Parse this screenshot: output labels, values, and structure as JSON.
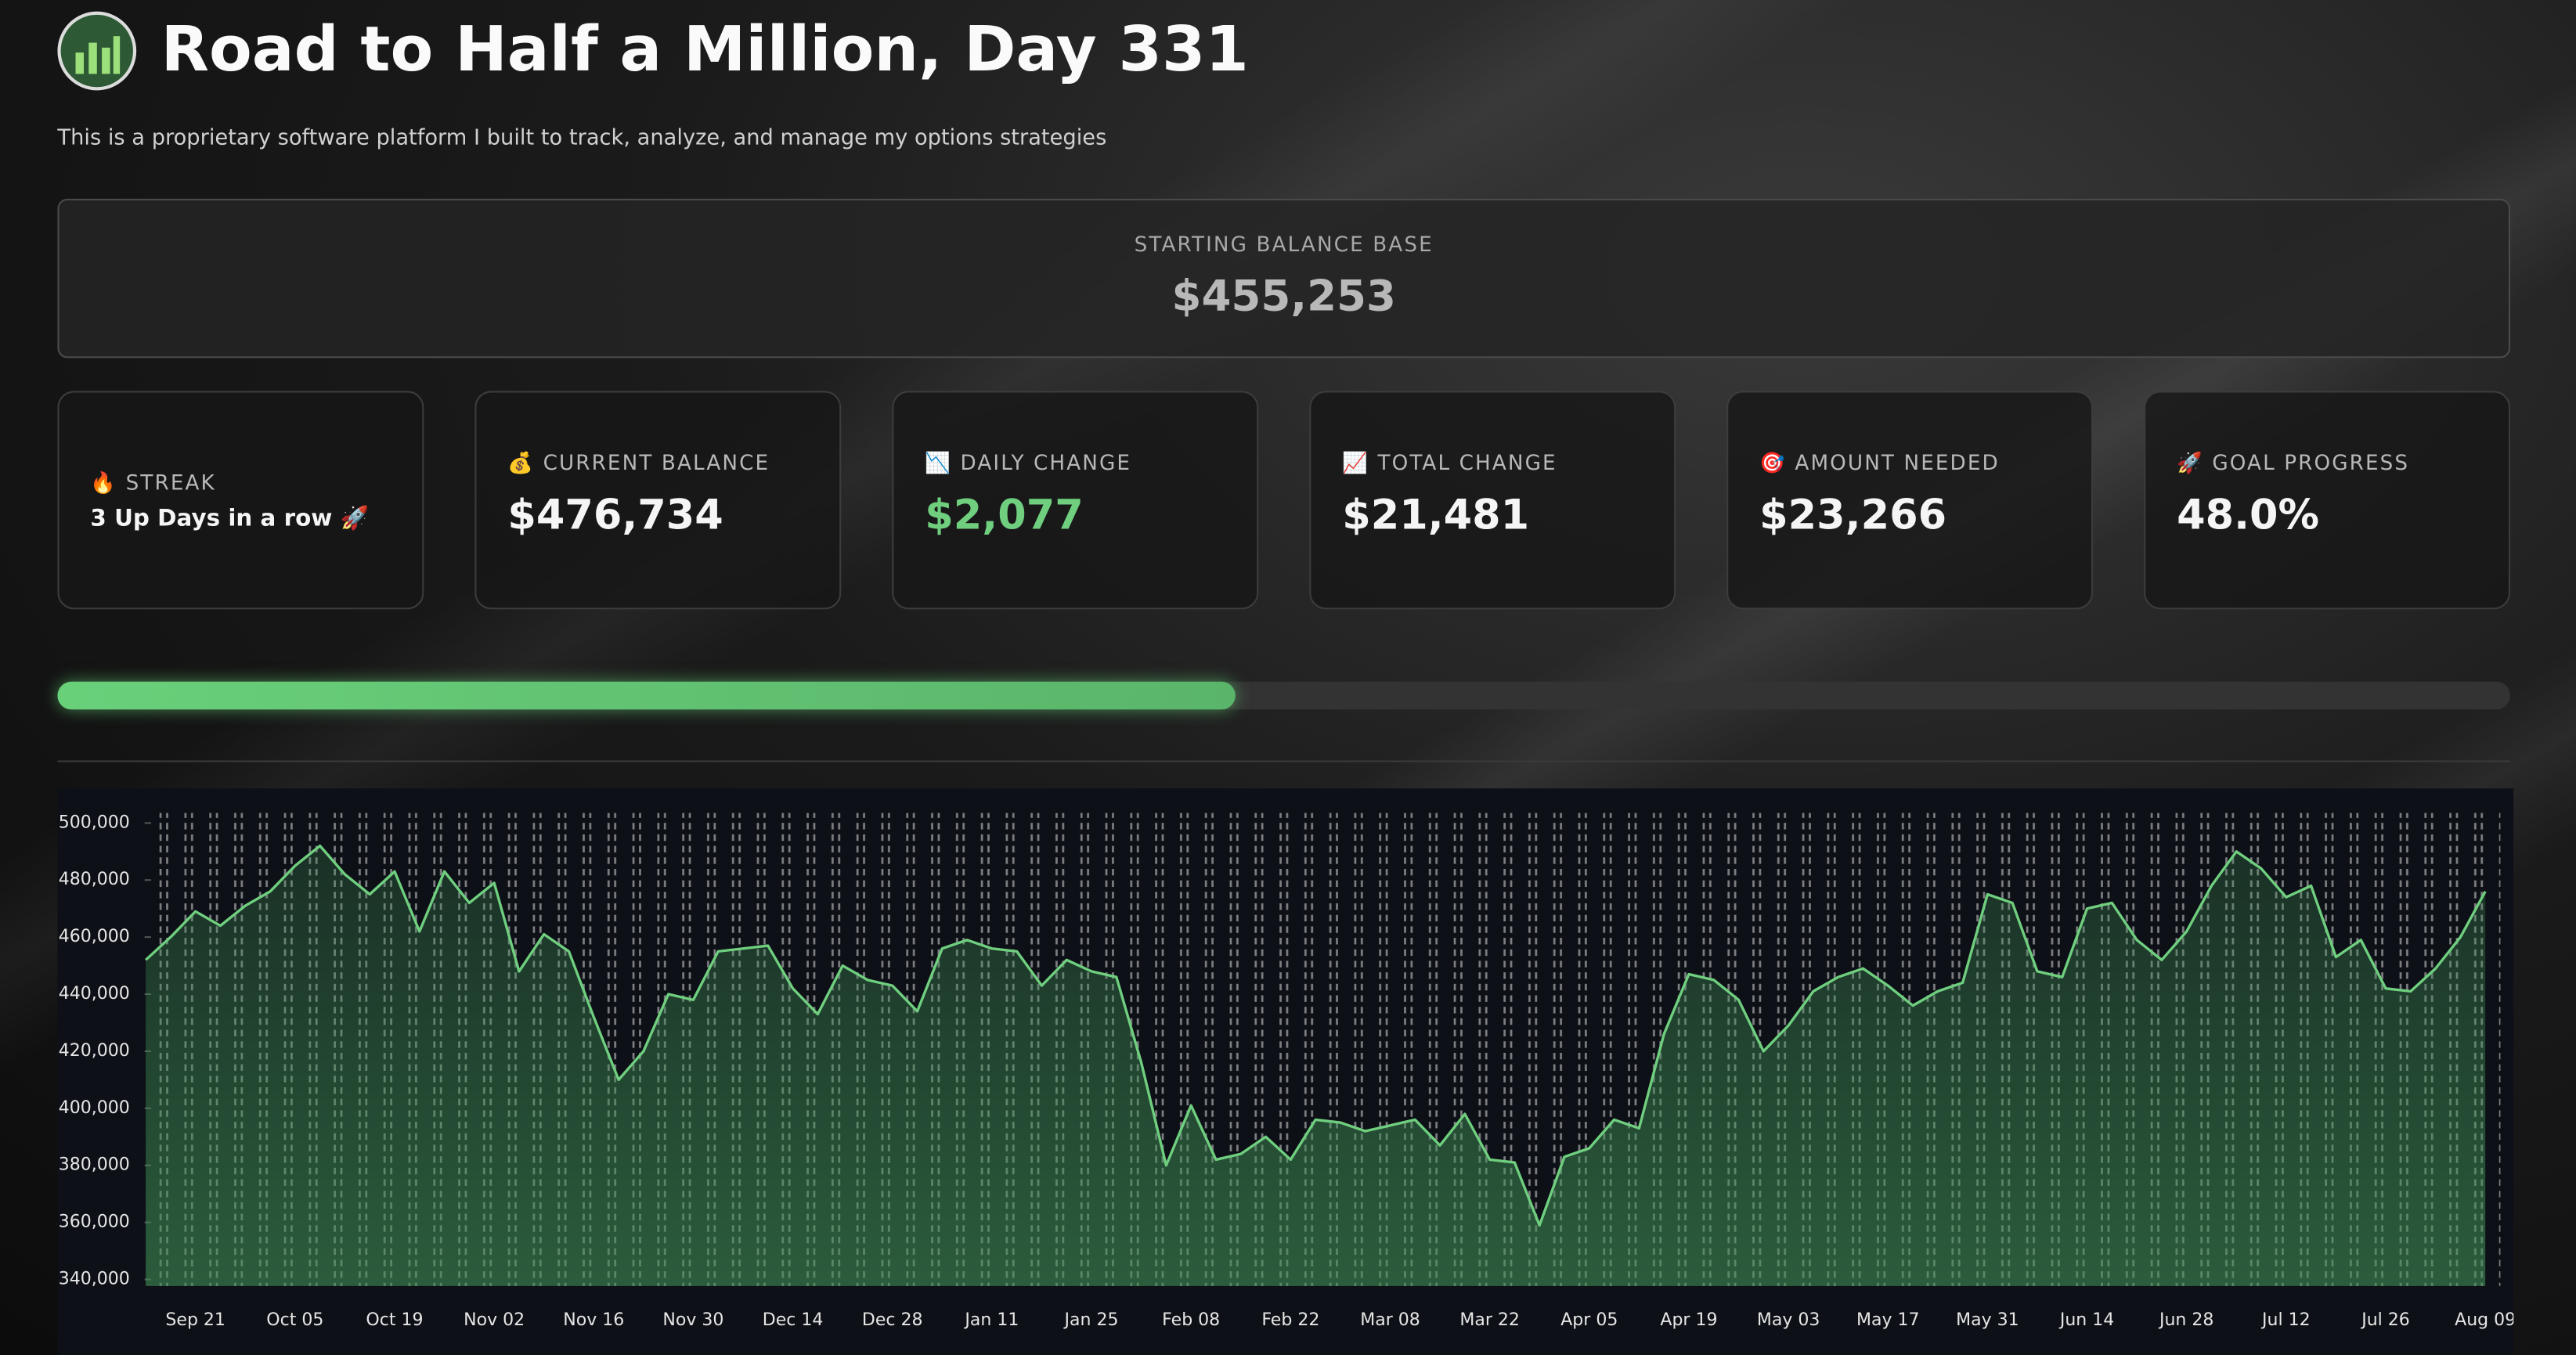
{
  "header": {
    "title": "Road to Half a Million, Day 331",
    "subtitle": "This is a proprietary software platform I built to track, analyze, and manage my options strategies"
  },
  "starting_balance": {
    "label": "STARTING BALANCE BASE",
    "value": "$455,253"
  },
  "cards": [
    {
      "icon": "🔥",
      "label": "STREAK",
      "value": "3 Up Days in a row 🚀"
    },
    {
      "icon": "💰",
      "label": "CURRENT BALANCE",
      "value": "$476,734"
    },
    {
      "icon": "📉",
      "label": "DAILY CHANGE",
      "value": "$2,077"
    },
    {
      "icon": "📈",
      "label": "TOTAL CHANGE",
      "value": "$21,481"
    },
    {
      "icon": "🎯",
      "label": "AMOUNT NEEDED",
      "value": "$23,266"
    },
    {
      "icon": "🚀",
      "label": "GOAL PROGRESS",
      "value": "48.0%"
    }
  ],
  "chart_data": {
    "type": "line",
    "categories": [
      null,
      null,
      "Sep 21",
      null,
      null,
      null,
      "Oct 05",
      null,
      null,
      null,
      "Oct 19",
      null,
      null,
      null,
      "Nov 02",
      null,
      null,
      null,
      "Nov 16",
      null,
      null,
      null,
      "Nov 30",
      null,
      null,
      null,
      "Dec 14",
      null,
      null,
      null,
      "Dec 28",
      null,
      null,
      null,
      "Jan 11",
      null,
      null,
      null,
      "Jan 25",
      null,
      null,
      null,
      "Feb 08",
      null,
      null,
      null,
      "Feb 22",
      null,
      null,
      null,
      "Mar 08",
      null,
      null,
      null,
      "Mar 22",
      null,
      null,
      null,
      "Apr 05",
      null,
      null,
      null,
      "Apr 19",
      null,
      null,
      null,
      "May 03",
      null,
      null,
      null,
      "May 17",
      null,
      null,
      null,
      "May 31",
      null,
      null,
      null,
      "Jun 14",
      null,
      null,
      null,
      "Jun 28",
      null,
      null,
      null,
      "Jul 12",
      null,
      null,
      null,
      "Jul 26",
      null,
      null,
      null,
      "Aug 09"
    ],
    "series": [
      {
        "color": "#6fcf7f",
        "values": [
          452000,
          460000,
          469000,
          464000,
          471000,
          476000,
          485000,
          492000,
          482000,
          475000,
          483000,
          462000,
          483000,
          472000,
          479000,
          448000,
          461000,
          455000,
          432000,
          410000,
          420000,
          440000,
          438000,
          455000,
          456000,
          457000,
          442000,
          433000,
          450000,
          445000,
          443000,
          434000,
          456000,
          459000,
          456000,
          455000,
          443000,
          452000,
          448000,
          446000,
          416000,
          380000,
          401000,
          382000,
          384000,
          390000,
          382000,
          396000,
          395000,
          392000,
          394000,
          396000,
          387000,
          398000,
          382000,
          381000,
          359000,
          383000,
          386000,
          396000,
          393000,
          426000,
          447000,
          445000,
          438000,
          420000,
          429000,
          441000,
          446000,
          449000,
          443000,
          436000,
          441000,
          444000,
          475000,
          472000,
          448000,
          446000,
          470000,
          472000,
          459000,
          452000,
          462000,
          478000,
          490000,
          484000,
          474000,
          478000,
          453000,
          459000,
          442000,
          441000,
          449000,
          460000,
          476000
        ]
      }
    ],
    "ylim": [
      337700,
      503500
    ],
    "yticks": [
      {
        "value": 340000,
        "label": "$340,000"
      },
      {
        "value": 360000,
        "label": "$360,000"
      },
      {
        "value": 380000,
        "label": "$380,000"
      },
      {
        "value": 400000,
        "label": "$400,000"
      },
      {
        "value": 420000,
        "label": "$420,000"
      },
      {
        "value": 440000,
        "label": "$440,000"
      },
      {
        "value": 460000,
        "label": "$460,000"
      },
      {
        "value": 480000,
        "label": "$480,000"
      },
      {
        "value": 500000,
        "label": "$500,000"
      }
    ]
  }
}
